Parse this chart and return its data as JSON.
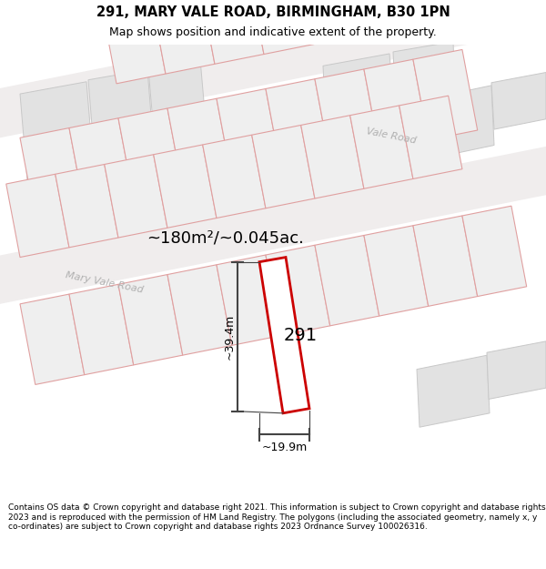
{
  "title": "291, MARY VALE ROAD, BIRMINGHAM, B30 1PN",
  "subtitle": "Map shows position and indicative extent of the property.",
  "footer": "Contains OS data © Crown copyright and database right 2021. This information is subject to Crown copyright and database rights 2023 and is reproduced with the permission of HM Land Registry. The polygons (including the associated geometry, namely x, y co-ordinates) are subject to Crown copyright and database rights 2023 Ordnance Survey 100026316.",
  "area_label": "~180m²/~0.045ac.",
  "dim_height": "~39.4m",
  "dim_width": "~19.9m",
  "plot_number": "291",
  "map_bg": "#f7f7f7",
  "lot_fill": "#efefef",
  "lot_outline_pink": "#e0a0a0",
  "lot_outline_gray": "#c0c0c0",
  "big_block_fill": "#e0e0e0",
  "big_block_outline": "#c0c0c0",
  "road_label_color": "#aaaaaa",
  "highlight_color": "#cc0000",
  "dim_line_color": "#444444",
  "road_band_color": "#f0f0f0"
}
